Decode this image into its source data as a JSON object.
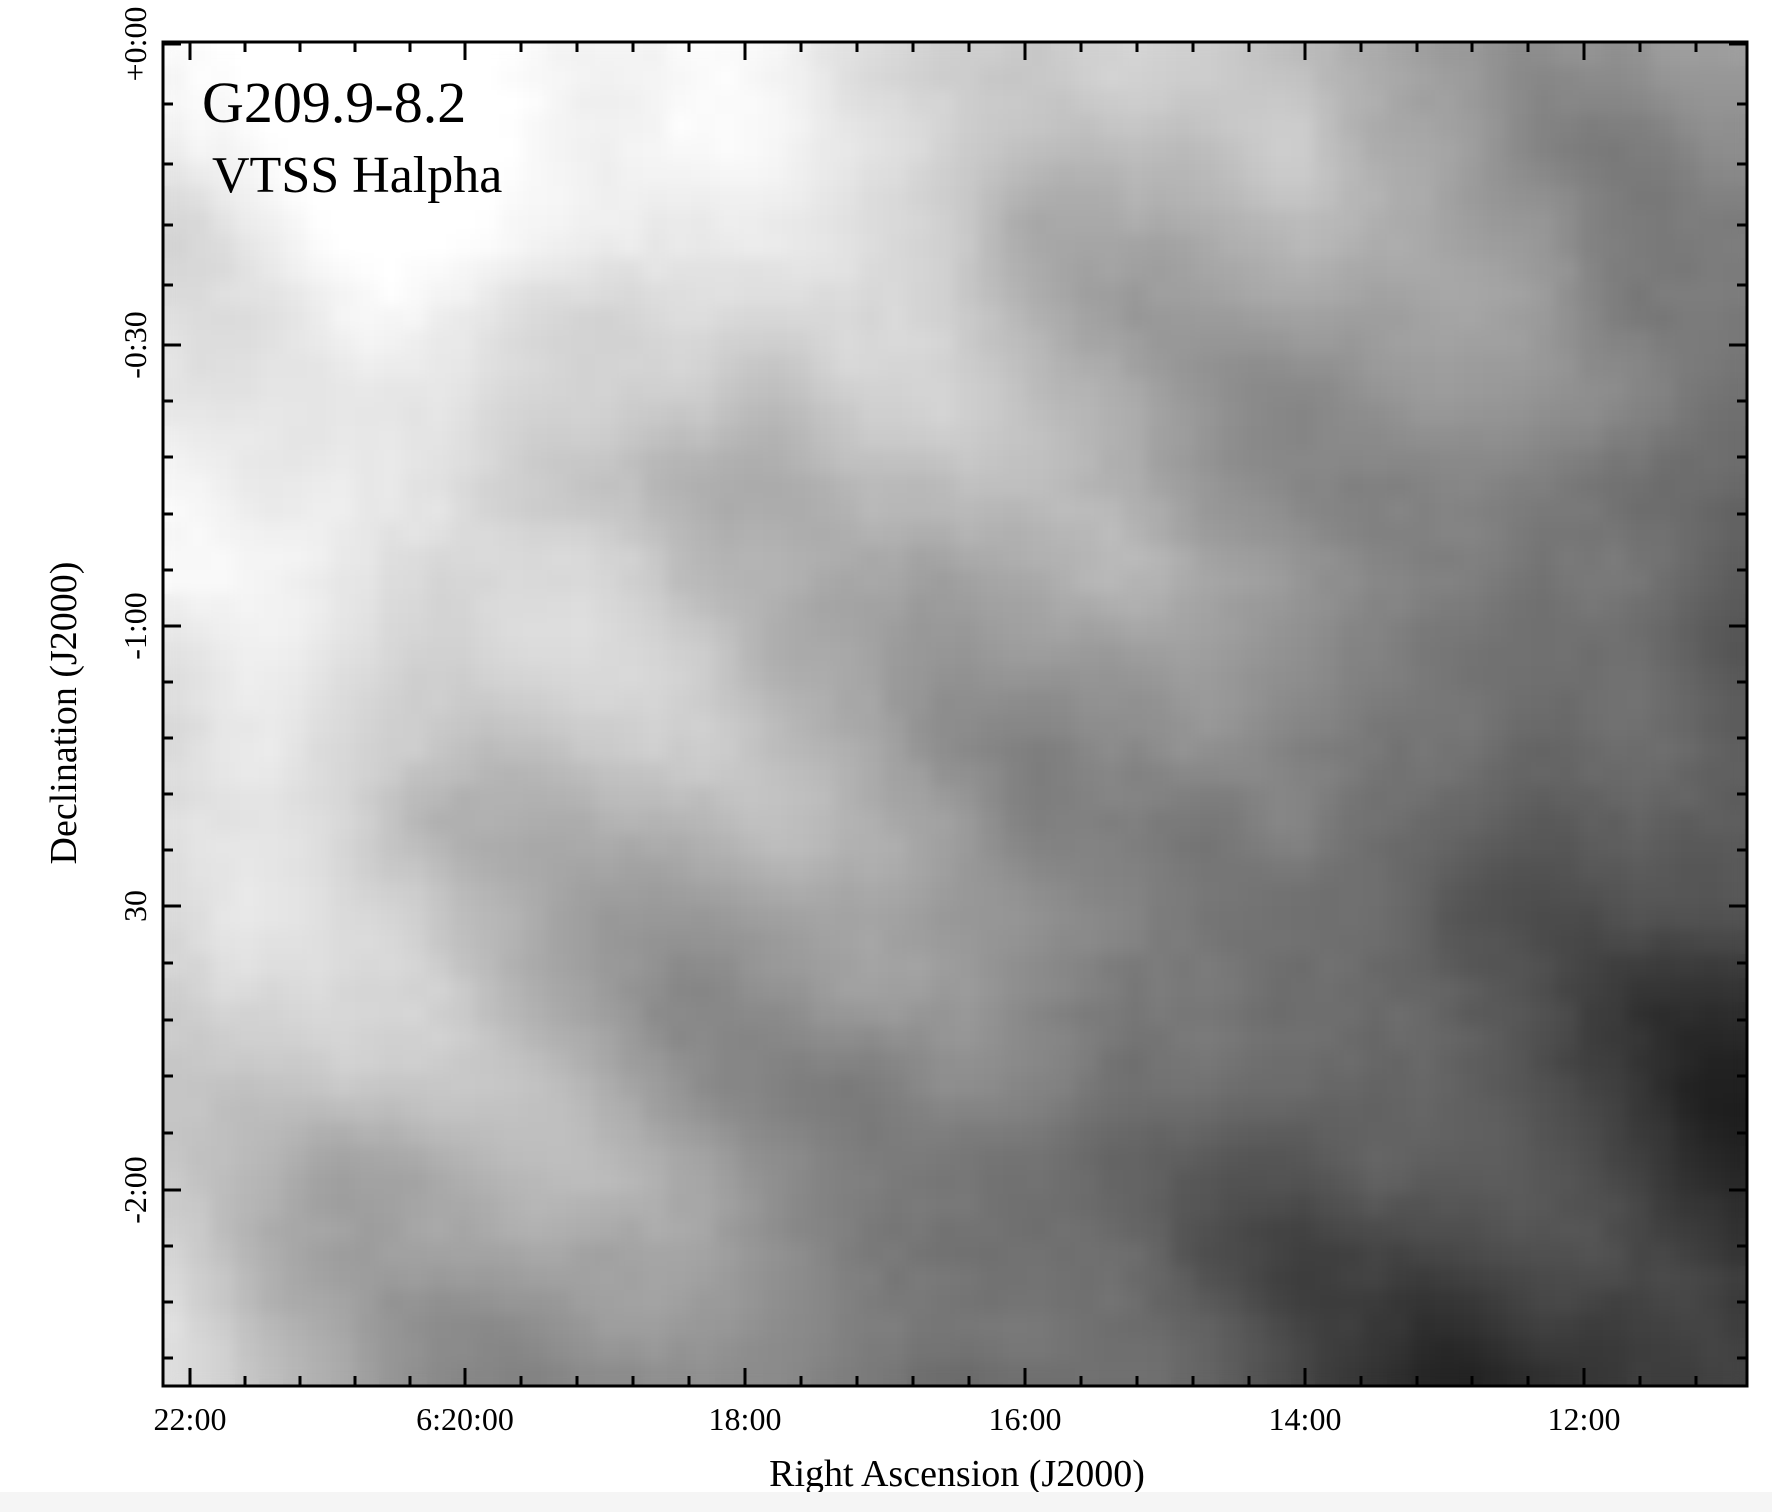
{
  "figure": {
    "title": "G209.9-8.2",
    "subtitle": "VTSS Halpha",
    "colormap": "grayscale",
    "frame_color": "#000000",
    "background_color": "#ffffff"
  },
  "axes": {
    "x": {
      "label": "Right Ascension (J2000)",
      "tick_labels": [
        "22:00",
        "6:20:00",
        "18:00",
        "16:00",
        "14:00",
        "12:00"
      ]
    },
    "y": {
      "label": "Declination (J2000)",
      "tick_labels": [
        "+0:00",
        "-0:30",
        "-1:00",
        "30",
        "-2:00"
      ]
    }
  }
}
